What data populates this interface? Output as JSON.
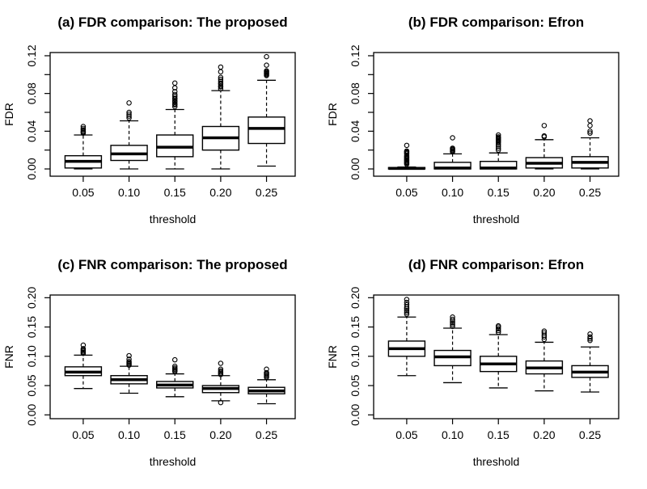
{
  "figure": {
    "background": "#ffffff",
    "foreground": "#000000"
  },
  "chart_data": [
    {
      "id": "a",
      "type": "boxplot",
      "title": "(a) FDR comparison: The proposed",
      "xlabel": "threshold",
      "ylabel": "FDR",
      "categories": [
        "0.05",
        "0.10",
        "0.15",
        "0.20",
        "0.25"
      ],
      "ylim": [
        -0.0077,
        0.1234
      ],
      "yticks": [
        {
          "v": 0.0,
          "label": "0.00"
        },
        {
          "v": 0.02,
          "label": ""
        },
        {
          "v": 0.04,
          "label": "0.04"
        },
        {
          "v": 0.06,
          "label": ""
        },
        {
          "v": 0.08,
          "label": "0.08"
        },
        {
          "v": 0.1,
          "label": ""
        },
        {
          "v": 0.12,
          "label": "0.12"
        }
      ],
      "boxes": [
        {
          "whislo": 0.0,
          "q1": 0.001,
          "med": 0.008,
          "q3": 0.014,
          "whishi": 0.036,
          "outliers": [
            0.038,
            0.039,
            0.04,
            0.0415,
            0.043,
            0.045
          ]
        },
        {
          "whislo": 0.0,
          "q1": 0.009,
          "med": 0.016,
          "q3": 0.025,
          "whishi": 0.051,
          "outliers": [
            0.054,
            0.056,
            0.058,
            0.06,
            0.07
          ]
        },
        {
          "whislo": 0.0,
          "q1": 0.013,
          "med": 0.023,
          "q3": 0.036,
          "whishi": 0.063,
          "outliers": [
            0.066,
            0.068,
            0.069,
            0.071,
            0.072,
            0.074,
            0.075,
            0.077,
            0.079,
            0.082,
            0.086,
            0.091
          ]
        },
        {
          "whislo": 0.0,
          "q1": 0.02,
          "med": 0.033,
          "q3": 0.045,
          "whishi": 0.083,
          "outliers": [
            0.085,
            0.087,
            0.088,
            0.09,
            0.091,
            0.093,
            0.095,
            0.097,
            0.103,
            0.108
          ]
        },
        {
          "whislo": 0.003,
          "q1": 0.027,
          "med": 0.043,
          "q3": 0.055,
          "whishi": 0.094,
          "outliers": [
            0.099,
            0.1,
            0.101,
            0.102,
            0.103,
            0.104,
            0.11,
            0.119
          ]
        }
      ]
    },
    {
      "id": "b",
      "type": "boxplot",
      "title": "(b) FDR comparison: Efron",
      "xlabel": "threshold",
      "ylabel": "FDR",
      "categories": [
        "0.05",
        "0.10",
        "0.15",
        "0.20",
        "0.25"
      ],
      "ylim": [
        -0.0077,
        0.1234
      ],
      "yticks": [
        {
          "v": 0.0,
          "label": "0.00"
        },
        {
          "v": 0.02,
          "label": ""
        },
        {
          "v": 0.04,
          "label": "0.04"
        },
        {
          "v": 0.06,
          "label": ""
        },
        {
          "v": 0.08,
          "label": "0.08"
        },
        {
          "v": 0.1,
          "label": ""
        },
        {
          "v": 0.12,
          "label": "0.12"
        }
      ],
      "boxes": [
        {
          "whislo": 0.0,
          "q1": 0.0,
          "med": 0.0005,
          "q3": 0.0015,
          "whishi": 0.002,
          "outliers": [
            0.005,
            0.006,
            0.007,
            0.008,
            0.009,
            0.01,
            0.011,
            0.012,
            0.013,
            0.014,
            0.016,
            0.017,
            0.018,
            0.019,
            0.025
          ]
        },
        {
          "whislo": 0.0,
          "q1": 0.0,
          "med": 0.001,
          "q3": 0.007,
          "whishi": 0.016,
          "outliers": [
            0.018,
            0.019,
            0.02,
            0.021,
            0.022,
            0.033
          ]
        },
        {
          "whislo": 0.0,
          "q1": 0.0,
          "med": 0.001,
          "q3": 0.008,
          "whishi": 0.017,
          "outliers": [
            0.02,
            0.022,
            0.024,
            0.026,
            0.028,
            0.029,
            0.03,
            0.031,
            0.032,
            0.033,
            0.034,
            0.036
          ]
        },
        {
          "whislo": 0.0,
          "q1": 0.001,
          "med": 0.006,
          "q3": 0.012,
          "whishi": 0.031,
          "outliers": [
            0.034,
            0.035,
            0.046
          ]
        },
        {
          "whislo": 0.0,
          "q1": 0.001,
          "med": 0.007,
          "q3": 0.013,
          "whishi": 0.033,
          "outliers": [
            0.038,
            0.04,
            0.046,
            0.051
          ]
        }
      ]
    },
    {
      "id": "c",
      "type": "boxplot",
      "title": "(c) FNR comparison: The proposed",
      "xlabel": "threshold",
      "ylabel": "FNR",
      "categories": [
        "0.05",
        "0.10",
        "0.15",
        "0.20",
        "0.25"
      ],
      "ylim": [
        -0.0065,
        0.2046
      ],
      "yticks": [
        {
          "v": 0.0,
          "label": "0.00"
        },
        {
          "v": 0.05,
          "label": "0.05"
        },
        {
          "v": 0.1,
          "label": "0.10"
        },
        {
          "v": 0.15,
          "label": "0.15"
        },
        {
          "v": 0.2,
          "label": "0.20"
        }
      ],
      "boxes": [
        {
          "whislo": 0.045,
          "q1": 0.067,
          "med": 0.073,
          "q3": 0.082,
          "whishi": 0.102,
          "outliers": [
            0.105,
            0.107,
            0.109,
            0.111,
            0.113,
            0.119
          ]
        },
        {
          "whislo": 0.037,
          "q1": 0.053,
          "med": 0.06,
          "q3": 0.067,
          "whishi": 0.083,
          "outliers": [
            0.085,
            0.087,
            0.089,
            0.091,
            0.095,
            0.101
          ]
        },
        {
          "whislo": 0.031,
          "q1": 0.046,
          "med": 0.051,
          "q3": 0.057,
          "whishi": 0.07,
          "outliers": [
            0.074,
            0.076,
            0.078,
            0.08,
            0.083,
            0.094
          ]
        },
        {
          "whislo": 0.024,
          "q1": 0.038,
          "med": 0.045,
          "q3": 0.05,
          "whishi": 0.067,
          "outliers": [
            0.021,
            0.069,
            0.071,
            0.073,
            0.075,
            0.078,
            0.088
          ]
        },
        {
          "whislo": 0.019,
          "q1": 0.036,
          "med": 0.041,
          "q3": 0.047,
          "whishi": 0.06,
          "outliers": [
            0.064,
            0.066,
            0.068,
            0.07,
            0.072,
            0.078
          ]
        }
      ]
    },
    {
      "id": "d",
      "type": "boxplot",
      "title": "(d) FNR comparison: Efron",
      "xlabel": "threshold",
      "ylabel": "FNR",
      "categories": [
        "0.05",
        "0.10",
        "0.15",
        "0.20",
        "0.25"
      ],
      "ylim": [
        -0.0065,
        0.2046
      ],
      "yticks": [
        {
          "v": 0.0,
          "label": "0.00"
        },
        {
          "v": 0.05,
          "label": "0.05"
        },
        {
          "v": 0.1,
          "label": "0.10"
        },
        {
          "v": 0.15,
          "label": "0.15"
        },
        {
          "v": 0.2,
          "label": "0.20"
        }
      ],
      "boxes": [
        {
          "whislo": 0.067,
          "q1": 0.1,
          "med": 0.113,
          "q3": 0.126,
          "whishi": 0.167,
          "outliers": [
            0.172,
            0.175,
            0.178,
            0.181,
            0.184,
            0.188,
            0.192,
            0.197
          ]
        },
        {
          "whislo": 0.055,
          "q1": 0.084,
          "med": 0.099,
          "q3": 0.11,
          "whishi": 0.148,
          "outliers": [
            0.151,
            0.154,
            0.157,
            0.16,
            0.163,
            0.167
          ]
        },
        {
          "whislo": 0.046,
          "q1": 0.074,
          "med": 0.087,
          "q3": 0.1,
          "whishi": 0.137,
          "outliers": [
            0.141,
            0.144,
            0.147,
            0.15,
            0.152
          ]
        },
        {
          "whislo": 0.041,
          "q1": 0.07,
          "med": 0.08,
          "q3": 0.092,
          "whishi": 0.124,
          "outliers": [
            0.129,
            0.133,
            0.136,
            0.14,
            0.143
          ]
        },
        {
          "whislo": 0.039,
          "q1": 0.064,
          "med": 0.073,
          "q3": 0.084,
          "whishi": 0.116,
          "outliers": [
            0.127,
            0.13,
            0.133,
            0.138
          ]
        }
      ]
    }
  ]
}
